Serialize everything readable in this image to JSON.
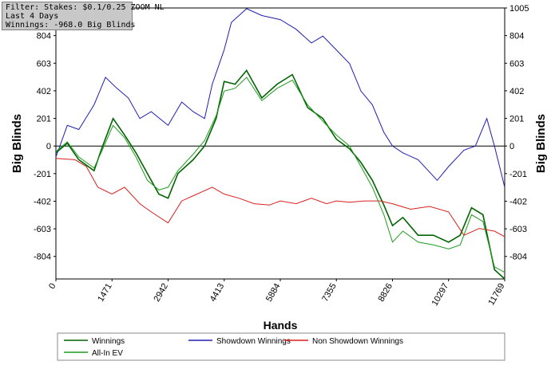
{
  "filter_box": {
    "line1": "Filter: Stakes: $0.1/0.25 ZOOM NL",
    "line2": "Last  4 Days",
    "line3": "Winnings: -968.0 Big Blinds"
  },
  "legend": {
    "items": [
      {
        "label": "Winnings",
        "color": "#006400"
      },
      {
        "label": "Showdown Winnings",
        "color": "#1e1eb4"
      },
      {
        "label": "Non Showdown Winnings",
        "color": "#dc1e1e"
      },
      {
        "label": "All-In EV",
        "color": "#1f9b1f"
      }
    ]
  },
  "chart_data": {
    "type": "line",
    "title": "",
    "xlabel": "Hands",
    "ylabel": "Big Blinds",
    "y2label": "Big Blinds",
    "xlim": [
      0,
      11769
    ],
    "ylim": [
      -968,
      1005
    ],
    "x_ticks": [
      0,
      1471,
      2942,
      4413,
      5884,
      7355,
      8826,
      10297,
      11769
    ],
    "x_tick_labels": [
      "0",
      "1471",
      "2942",
      "4413",
      "5884",
      "7355",
      "8826",
      "10297",
      "11769"
    ],
    "y_ticks": [
      -804,
      -603,
      -402,
      -201,
      0,
      201,
      402,
      603,
      804
    ],
    "y_tick_labels": [
      "-804",
      "-603",
      "-402",
      "-201",
      "0",
      "201",
      "402",
      "603",
      "804"
    ],
    "y_right_ticks": [
      -804,
      -603,
      -402,
      -201,
      0,
      201,
      402,
      603,
      804,
      1005
    ],
    "y_right_tick_labels": [
      "-804",
      "-603",
      "-402",
      "-201",
      "0",
      "201",
      "402",
      "603",
      "804",
      "1005"
    ],
    "grid": true,
    "legend_position": "bottom",
    "series": [
      {
        "name": "Winnings",
        "color": "#006400",
        "x": [
          0,
          300,
          600,
          1000,
          1200,
          1500,
          1800,
          2100,
          2400,
          2700,
          2942,
          3200,
          3600,
          3900,
          4200,
          4413,
          4700,
          5000,
          5400,
          5800,
          6200,
          6600,
          7000,
          7355,
          7700,
          8000,
          8300,
          8600,
          8826,
          9100,
          9500,
          9900,
          10297,
          10600,
          10900,
          11200,
          11500,
          11769
        ],
        "y": [
          -50,
          20,
          -100,
          -180,
          -20,
          200,
          80,
          -50,
          -200,
          -350,
          -380,
          -200,
          -100,
          0,
          200,
          470,
          450,
          550,
          350,
          450,
          520,
          280,
          200,
          50,
          -20,
          -120,
          -250,
          -430,
          -580,
          -520,
          -650,
          -650,
          -700,
          -650,
          -450,
          -500,
          -900,
          -968
        ]
      },
      {
        "name": "Showdown Winnings",
        "color": "#1e1eb4",
        "x": [
          0,
          300,
          600,
          1000,
          1300,
          1600,
          1900,
          2200,
          2500,
          2942,
          3300,
          3600,
          3900,
          4100,
          4413,
          4600,
          5000,
          5400,
          5884,
          6300,
          6700,
          7000,
          7355,
          7700,
          8000,
          8300,
          8600,
          8826,
          9100,
          9500,
          10000,
          10297,
          10700,
          11000,
          11300,
          11500,
          11769
        ],
        "y": [
          -80,
          150,
          120,
          300,
          500,
          420,
          350,
          200,
          250,
          150,
          320,
          250,
          200,
          450,
          700,
          900,
          1000,
          950,
          920,
          850,
          750,
          800,
          700,
          600,
          400,
          300,
          100,
          0,
          -50,
          -100,
          -250,
          -150,
          -30,
          0,
          200,
          0,
          -300
        ]
      },
      {
        "name": "Non Showdown Winnings",
        "color": "#dc1e1e",
        "x": [
          0,
          500,
          800,
          1100,
          1471,
          1800,
          2200,
          2500,
          2942,
          3300,
          3700,
          4100,
          4413,
          4800,
          5200,
          5600,
          5884,
          6300,
          6700,
          7100,
          7355,
          7700,
          8100,
          8500,
          8826,
          9300,
          9800,
          10297,
          10700,
          11100,
          11500,
          11769
        ],
        "y": [
          -90,
          -100,
          -150,
          -300,
          -350,
          -300,
          -420,
          -480,
          -560,
          -400,
          -350,
          -300,
          -350,
          -380,
          -420,
          -430,
          -400,
          -420,
          -380,
          -420,
          -400,
          -410,
          -400,
          -400,
          -420,
          -460,
          -440,
          -480,
          -650,
          -600,
          -620,
          -660
        ]
      },
      {
        "name": "All-In EV",
        "color": "#1f9b1f",
        "x": [
          0,
          300,
          600,
          1000,
          1200,
          1500,
          1800,
          2100,
          2400,
          2700,
          2942,
          3200,
          3600,
          3900,
          4200,
          4413,
          4700,
          5000,
          5400,
          5800,
          6200,
          6600,
          7000,
          7355,
          7700,
          8000,
          8300,
          8600,
          8826,
          9100,
          9500,
          9900,
          10297,
          10600,
          10900,
          11200,
          11500,
          11769
        ],
        "y": [
          -40,
          30,
          -80,
          -160,
          -40,
          150,
          60,
          -80,
          -250,
          -320,
          -300,
          -180,
          -60,
          40,
          220,
          400,
          420,
          500,
          330,
          420,
          480,
          300,
          180,
          80,
          0,
          -150,
          -300,
          -500,
          -700,
          -620,
          -700,
          -720,
          -750,
          -720,
          -500,
          -550,
          -880,
          -920
        ]
      }
    ]
  }
}
